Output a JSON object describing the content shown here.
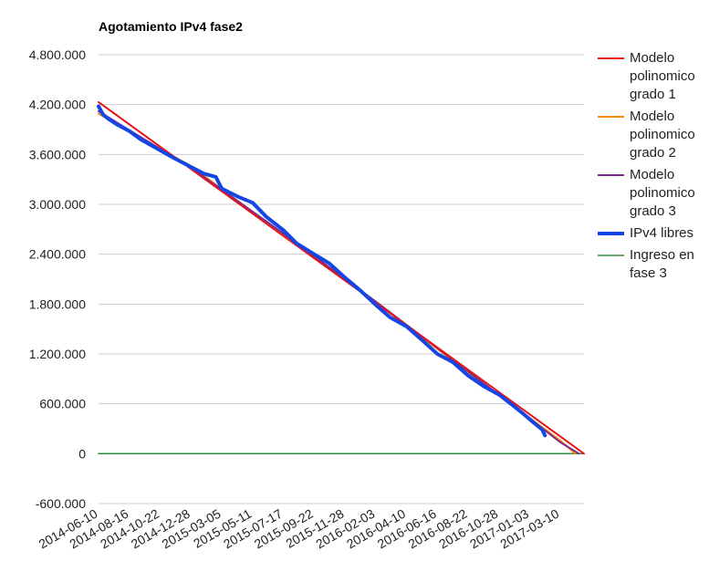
{
  "chart_data": {
    "type": "line",
    "title": "Agotamiento IPv4 fase2",
    "xlabel": "",
    "ylabel": "",
    "ylim": [
      -600000,
      4800000
    ],
    "y_ticks": [
      -600000,
      0,
      600000,
      1200000,
      1800000,
      2400000,
      3000000,
      3600000,
      4200000,
      4800000
    ],
    "y_tick_labels": [
      "-600.000",
      "0",
      "600.000",
      "1.200.000",
      "1.800.000",
      "2.400.000",
      "3.000.000",
      "3.600.000",
      "4.200.000",
      "4.800.000"
    ],
    "x_range": [
      "2014-06-10",
      "2017-05-01"
    ],
    "x_tick_labels": [
      "2014-06-10",
      "2014-08-16",
      "2014-10-22",
      "2014-12-28",
      "2015-03-05",
      "2015-05-11",
      "2015-07-17",
      "2015-09-22",
      "2015-11-28",
      "2016-02-03",
      "2016-04-10",
      "2016-06-16",
      "2016-08-22",
      "2016-10-28",
      "2017-01-03",
      "2017-03-10"
    ],
    "grid": true,
    "legend_position": "right",
    "series": [
      {
        "name": "Modelo polinomico grado 1",
        "color": "#e8141b",
        "x": [
          "2014-06-10",
          "2017-05-01"
        ],
        "y": [
          4230000,
          0
        ]
      },
      {
        "name": "Modelo polinomico grado 2",
        "color": "#ff8c00",
        "x": [
          "2014-06-10",
          "2014-12-28",
          "2015-07-17",
          "2016-02-03",
          "2016-08-22",
          "2017-03-10",
          "2017-04-12"
        ],
        "y": [
          4090000,
          3460000,
          2630000,
          1820000,
          980000,
          160000,
          0
        ]
      },
      {
        "name": "Modelo polinomico grado 3",
        "color": "#7b2b8a",
        "x": [
          "2014-06-10",
          "2014-12-28",
          "2015-07-17",
          "2016-02-03",
          "2016-08-22",
          "2017-03-10",
          "2017-04-20"
        ],
        "y": [
          4120000,
          3440000,
          2650000,
          1830000,
          990000,
          140000,
          0
        ]
      },
      {
        "name": "IPv4 libres",
        "color": "#1446e6",
        "x": [
          "2014-06-10",
          "2014-06-20",
          "2014-07-01",
          "2014-07-20",
          "2014-08-16",
          "2014-09-10",
          "2014-10-22",
          "2014-11-20",
          "2014-12-28",
          "2015-01-25",
          "2015-02-20",
          "2015-03-05",
          "2015-04-10",
          "2015-05-11",
          "2015-06-10",
          "2015-07-17",
          "2015-08-15",
          "2015-09-22",
          "2015-10-25",
          "2015-11-28",
          "2015-12-30",
          "2016-02-03",
          "2016-03-05",
          "2016-04-10",
          "2016-05-15",
          "2016-06-16",
          "2016-07-20",
          "2016-08-22",
          "2016-09-25",
          "2016-10-28",
          "2016-11-30",
          "2016-12-20",
          "2017-01-10",
          "2017-01-30",
          "2017-02-05"
        ],
        "y": [
          4180000,
          4080000,
          4030000,
          3960000,
          3880000,
          3780000,
          3650000,
          3560000,
          3450000,
          3370000,
          3330000,
          3190000,
          3090000,
          3020000,
          2850000,
          2690000,
          2530000,
          2400000,
          2290000,
          2120000,
          1970000,
          1790000,
          1640000,
          1530000,
          1360000,
          1200000,
          1100000,
          940000,
          810000,
          710000,
          570000,
          480000,
          380000,
          290000,
          220000
        ]
      },
      {
        "name": "Ingreso en fase 3",
        "color": "#2e8b3e",
        "x": [
          "2014-06-10",
          "2017-05-01"
        ],
        "y": [
          0,
          0
        ]
      }
    ],
    "legend": [
      {
        "lines": [
          "Modelo",
          "polinomico",
          "grado 1"
        ],
        "color": "#e8141b",
        "width": 2
      },
      {
        "lines": [
          "Modelo",
          "polinomico",
          "grado 2"
        ],
        "color": "#ff8c00",
        "width": 2
      },
      {
        "lines": [
          "Modelo",
          "polinomico",
          "grado 3"
        ],
        "color": "#7b2b8a",
        "width": 2
      },
      {
        "lines": [
          "IPv4 libres"
        ],
        "color": "#1446e6",
        "width": 4
      },
      {
        "lines": [
          "Ingreso en",
          "fase 3"
        ],
        "color": "#2e8b3e",
        "width": 1.5
      }
    ]
  }
}
